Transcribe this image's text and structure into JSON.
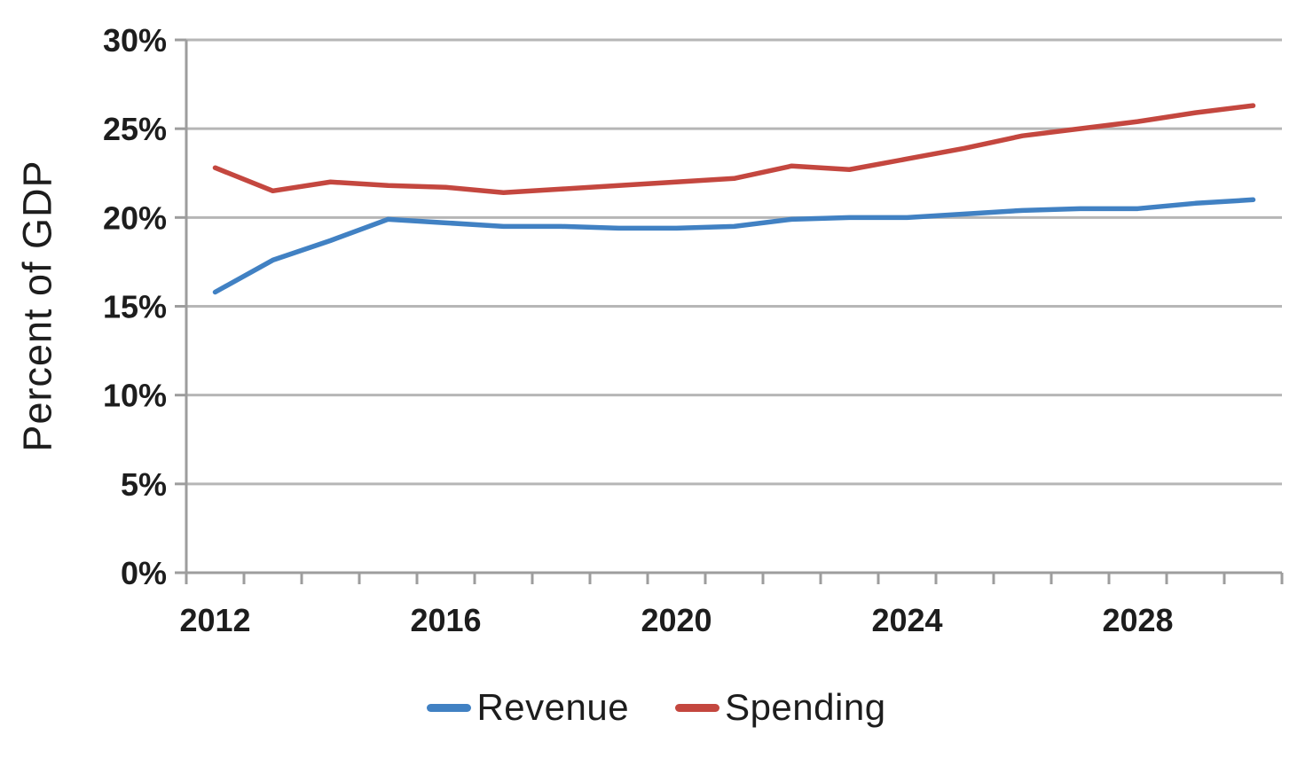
{
  "chart_data": {
    "type": "line",
    "title": "",
    "xlabel": "",
    "ylabel": "Percent of GDP",
    "x": [
      2012,
      2013,
      2014,
      2015,
      2016,
      2017,
      2018,
      2019,
      2020,
      2021,
      2022,
      2023,
      2024,
      2025,
      2026,
      2027,
      2028,
      2029,
      2030
    ],
    "series": [
      {
        "name": "Revenue",
        "color": "#4181c3",
        "values": [
          15.8,
          17.6,
          18.7,
          19.9,
          19.7,
          19.5,
          19.5,
          19.4,
          19.4,
          19.5,
          19.9,
          20.0,
          20.0,
          20.2,
          20.4,
          20.5,
          20.5,
          20.8,
          21.0
        ]
      },
      {
        "name": "Spending",
        "color": "#c4473f",
        "values": [
          22.8,
          21.5,
          22.0,
          21.8,
          21.7,
          21.4,
          21.6,
          21.8,
          22.0,
          22.2,
          22.9,
          22.7,
          23.3,
          23.9,
          24.6,
          25.0,
          25.4,
          25.9,
          26.3
        ]
      }
    ],
    "ylim": [
      0,
      30
    ],
    "yticks": [
      0,
      5,
      10,
      15,
      20,
      25,
      30
    ],
    "ytick_labels": [
      "0%",
      "5%",
      "10%",
      "15%",
      "20%",
      "25%",
      "30%"
    ],
    "xtick_label_years": [
      2012,
      2016,
      2020,
      2024,
      2028
    ],
    "grid": true,
    "legend_position": "bottom",
    "colors": {
      "gridline": "#b6b6b6",
      "axis": "#9d9d9d",
      "text": "#1d1d1d",
      "background": "#ffffff"
    }
  }
}
